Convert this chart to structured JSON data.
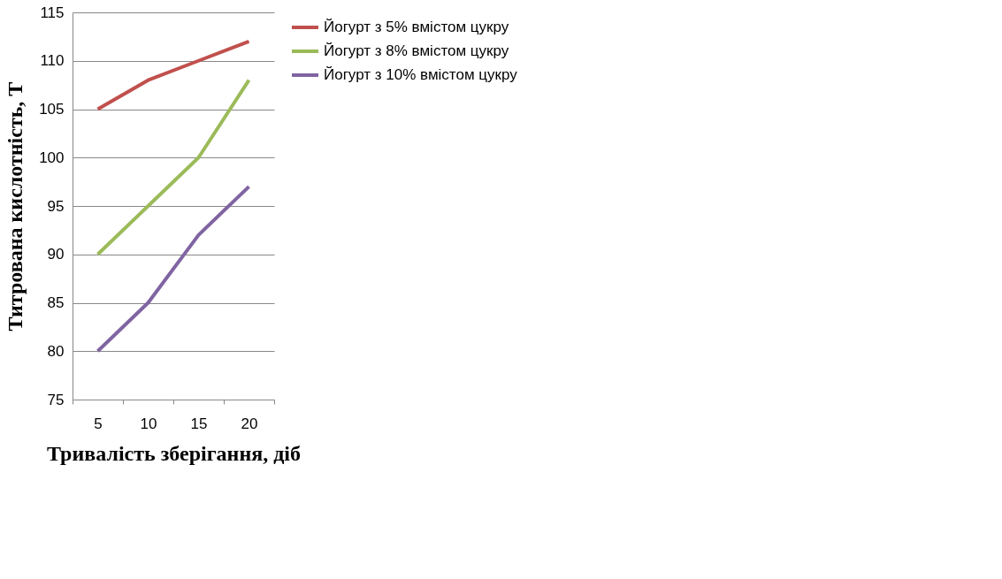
{
  "chart_data": {
    "type": "line",
    "xlabel": "Тривалість зберігання, діб",
    "ylabel": "Титрована кислотність, Т",
    "categories": [
      "5",
      "10",
      "15",
      "20"
    ],
    "series": [
      {
        "name": "Йогурт з 5% вмістом цукру",
        "color": "#c0504d",
        "values": [
          105,
          108,
          110,
          112
        ]
      },
      {
        "name": "Йогурт з 8% вмістом цукру",
        "color": "#9bbb59",
        "values": [
          90,
          95,
          100,
          108
        ]
      },
      {
        "name": "Йогурт з 10% вмістом цукру",
        "color": "#8064a2",
        "values": [
          80,
          85,
          92,
          97
        ]
      }
    ],
    "ylim": [
      75,
      115
    ],
    "yticks": [
      75,
      80,
      85,
      90,
      95,
      100,
      105,
      110,
      115
    ],
    "grid": "y",
    "legend": "right",
    "marker": "none",
    "line_style": "solid"
  }
}
